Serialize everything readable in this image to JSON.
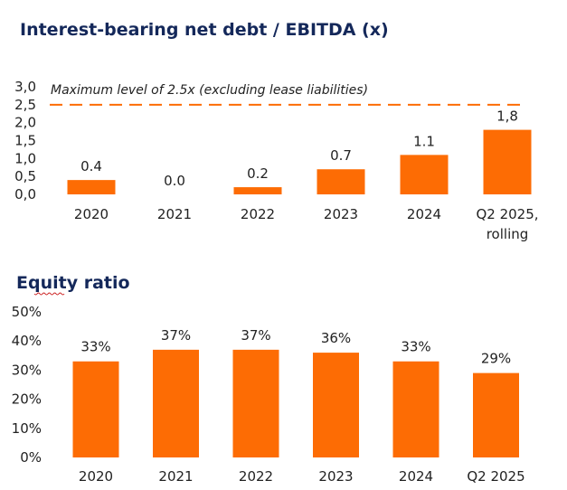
{
  "colors": {
    "bar": "#fd6c04",
    "title": "#14285a",
    "text": "#222222",
    "threshold": "#fd6c04"
  },
  "chart_data": [
    {
      "type": "bar",
      "title": "Interest-bearing net debt / EBITDA (x)",
      "categories": [
        "2020",
        "2021",
        "2022",
        "2023",
        "2024",
        "Q2 2025,|rolling"
      ],
      "values": [
        0.4,
        0.0,
        0.2,
        0.7,
        1.1,
        1.8
      ],
      "value_labels": [
        "0.4",
        "0.0",
        "0.2",
        "0.7",
        "1.1",
        "1,8"
      ],
      "ylim": [
        0,
        3.0
      ],
      "yticks": [
        0,
        0.5,
        1.0,
        1.5,
        2.0,
        2.5,
        3.0
      ],
      "ytick_labels": [
        "0,0",
        "0,5",
        "1,0",
        "1,5",
        "2,0",
        "2,5",
        "3,0"
      ],
      "threshold": {
        "value": 2.5,
        "label": "Maximum level of 2.5x (excluding lease liabilities)",
        "style": "dashed"
      },
      "grid": false,
      "xlabel": "",
      "ylabel": ""
    },
    {
      "type": "bar",
      "title": "Equity ratio",
      "categories": [
        "2020",
        "2021",
        "2022",
        "2023",
        "2024",
        "Q2 2025"
      ],
      "values": [
        33,
        37,
        37,
        36,
        33,
        29
      ],
      "value_labels": [
        "33%",
        "37%",
        "37%",
        "36%",
        "33%",
        "29%"
      ],
      "ylim": [
        0,
        50
      ],
      "yticks": [
        0,
        10,
        20,
        30,
        40,
        50
      ],
      "ytick_labels": [
        "0%",
        "10%",
        "20%",
        "30%",
        "40%",
        "50%"
      ],
      "grid": false,
      "xlabel": "",
      "ylabel": ""
    }
  ]
}
